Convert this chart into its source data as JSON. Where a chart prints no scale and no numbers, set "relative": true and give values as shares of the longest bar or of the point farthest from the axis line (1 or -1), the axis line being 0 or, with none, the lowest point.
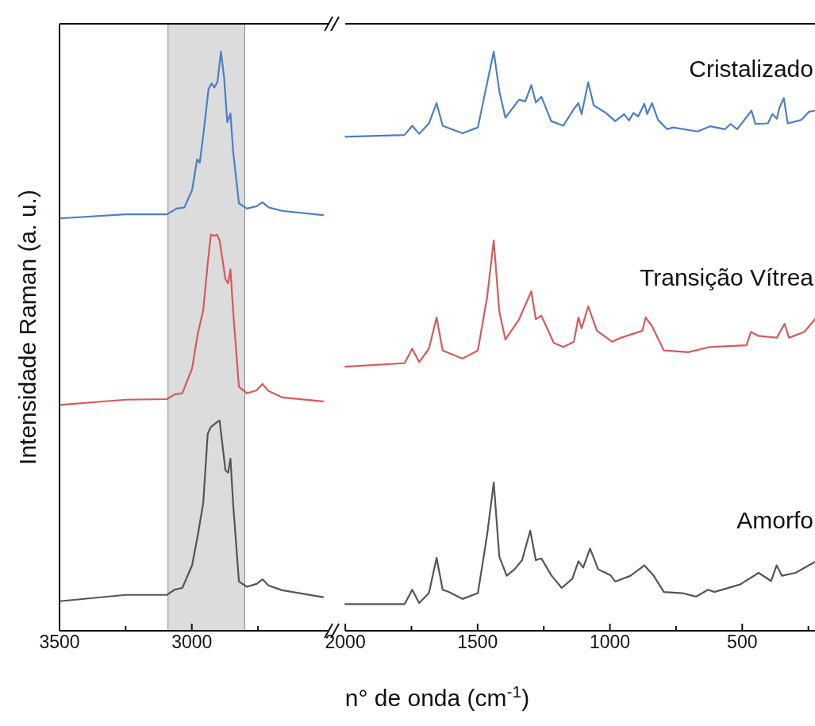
{
  "chart_data": [
    {
      "type": "line",
      "relative": true,
      "ylabel": "Intensidade Raman (a. u.)",
      "xlim": [
        3500,
        2480
      ],
      "xticks": [
        3500,
        {
          "value": 3250,
          "label": null
        },
        3000,
        {
          "value": 2750,
          "label": null
        }
      ],
      "bands": [
        {
          "axis": "x",
          "from": 3090,
          "to": 2800,
          "color": "#dcdcdc"
        }
      ],
      "series": [
        {
          "color": "#4a7fc8",
          "x": [
            3500,
            3250,
            3094,
            3058,
            3028,
            2999,
            2980,
            2970,
            2955,
            2937,
            2925,
            2915,
            2903,
            2890,
            2878,
            2866,
            2854,
            2844,
            2822,
            2792,
            2755,
            2733,
            2710,
            2659,
            2512,
            2504
          ],
          "values": [
            0.712,
            0.719,
            0.719,
            0.729,
            0.731,
            0.761,
            0.814,
            0.808,
            0.862,
            0.935,
            0.945,
            0.938,
            0.948,
            1.0,
            0.955,
            0.878,
            0.893,
            0.828,
            0.738,
            0.729,
            0.733,
            0.74,
            0.731,
            0.725,
            0.718,
            0.718
          ]
        },
        {
          "color": "#d65a5a",
          "x": [
            3500,
            3250,
            3094,
            3065,
            3036,
            2999,
            2977,
            2957,
            2940,
            2928,
            2917,
            2905,
            2895,
            2873,
            2863,
            2854,
            2844,
            2822,
            2792,
            2755,
            2733,
            2710,
            2659,
            2504
          ],
          "values": [
            0.39,
            0.399,
            0.4,
            0.408,
            0.41,
            0.453,
            0.514,
            0.553,
            0.634,
            0.684,
            0.682,
            0.684,
            0.674,
            0.607,
            0.6,
            0.624,
            0.553,
            0.421,
            0.41,
            0.415,
            0.426,
            0.414,
            0.403,
            0.396
          ]
        },
        {
          "color": "#555555",
          "x": [
            3500,
            3250,
            3094,
            3065,
            3036,
            2999,
            2977,
            2957,
            2940,
            2928,
            2905,
            2895,
            2873,
            2863,
            2854,
            2844,
            2822,
            2792,
            2755,
            2733,
            2710,
            2659,
            2504
          ],
          "values": [
            0.051,
            0.062,
            0.062,
            0.071,
            0.074,
            0.113,
            0.166,
            0.22,
            0.34,
            0.352,
            0.36,
            0.363,
            0.277,
            0.273,
            0.297,
            0.22,
            0.085,
            0.076,
            0.081,
            0.089,
            0.078,
            0.07,
            0.058
          ]
        }
      ]
    },
    {
      "type": "line",
      "relative": true,
      "xlabel": "n° de onda (cm$^{-1}$)",
      "xlim": [
        2000,
        225
      ],
      "xticks": [
        2000,
        {
          "value": 1750,
          "label": null
        },
        1500,
        {
          "value": 1250,
          "label": null
        },
        1000,
        {
          "value": 750,
          "label": null
        },
        500,
        {
          "value": 250,
          "label": null
        }
      ],
      "series": [
        {
          "name": "Cristalizado",
          "color": "#4a7fc8",
          "x": [
            2000,
            1776,
            1747,
            1721,
            1684,
            1655,
            1632,
            1557,
            1499,
            1464,
            1439,
            1418,
            1395,
            1343,
            1320,
            1297,
            1280,
            1259,
            1222,
            1176,
            1136,
            1119,
            1107,
            1082,
            1061,
            1015,
            980,
            946,
            928,
            911,
            893,
            870,
            859,
            841,
            818,
            784,
            761,
            669,
            622,
            565,
            544,
            519,
            465,
            450,
            403,
            386,
            369,
            360,
            343,
            328,
            277,
            248,
            225
          ],
          "values": [
            0.853,
            0.856,
            0.872,
            0.858,
            0.876,
            0.911,
            0.872,
            0.859,
            0.869,
            0.946,
            1.0,
            0.932,
            0.886,
            0.917,
            0.914,
            0.942,
            0.912,
            0.922,
            0.88,
            0.872,
            0.901,
            0.911,
            0.892,
            0.947,
            0.907,
            0.894,
            0.88,
            0.892,
            0.881,
            0.894,
            0.888,
            0.91,
            0.892,
            0.911,
            0.882,
            0.866,
            0.869,
            0.862,
            0.871,
            0.866,
            0.875,
            0.866,
            0.898,
            0.875,
            0.876,
            0.892,
            0.884,
            0.902,
            0.92,
            0.876,
            0.882,
            0.896,
            0.898
          ]
        },
        {
          "name": "Transição Vítrea",
          "color": "#d65a5a",
          "x": [
            2000,
            1776,
            1747,
            1721,
            1684,
            1655,
            1632,
            1557,
            1499,
            1464,
            1439,
            1418,
            1395,
            1343,
            1297,
            1280,
            1259,
            1212,
            1176,
            1136,
            1119,
            1107,
            1082,
            1049,
            992,
            958,
            877,
            865,
            841,
            796,
            704,
            622,
            484,
            467,
            438,
            369,
            340,
            323,
            265,
            225
          ],
          "values": [
            0.456,
            0.462,
            0.487,
            0.464,
            0.487,
            0.541,
            0.484,
            0.47,
            0.484,
            0.576,
            0.674,
            0.551,
            0.503,
            0.538,
            0.586,
            0.538,
            0.544,
            0.497,
            0.49,
            0.499,
            0.541,
            0.522,
            0.56,
            0.518,
            0.499,
            0.506,
            0.518,
            0.541,
            0.526,
            0.484,
            0.481,
            0.49,
            0.493,
            0.516,
            0.509,
            0.506,
            0.53,
            0.506,
            0.516,
            0.538
          ]
        },
        {
          "name": "Amorfo",
          "color": "#555555",
          "x": [
            2000,
            1776,
            1747,
            1721,
            1684,
            1655,
            1632,
            1609,
            1557,
            1499,
            1464,
            1439,
            1418,
            1390,
            1361,
            1332,
            1301,
            1280,
            1259,
            1222,
            1182,
            1142,
            1119,
            1101,
            1075,
            1044,
            998,
            980,
            922,
            870,
            836,
            796,
            726,
            675,
            629,
            606,
            508,
            438,
            391,
            370,
            350,
            299,
            225
          ],
          "values": [
            0.046,
            0.046,
            0.071,
            0.048,
            0.065,
            0.126,
            0.071,
            0.067,
            0.055,
            0.065,
            0.166,
            0.256,
            0.128,
            0.095,
            0.106,
            0.122,
            0.173,
            0.122,
            0.125,
            0.096,
            0.074,
            0.09,
            0.12,
            0.109,
            0.142,
            0.106,
            0.096,
            0.085,
            0.095,
            0.113,
            0.096,
            0.067,
            0.065,
            0.059,
            0.071,
            0.067,
            0.08,
            0.1,
            0.086,
            0.113,
            0.095,
            0.1,
            0.119
          ]
        }
      ]
    }
  ]
}
